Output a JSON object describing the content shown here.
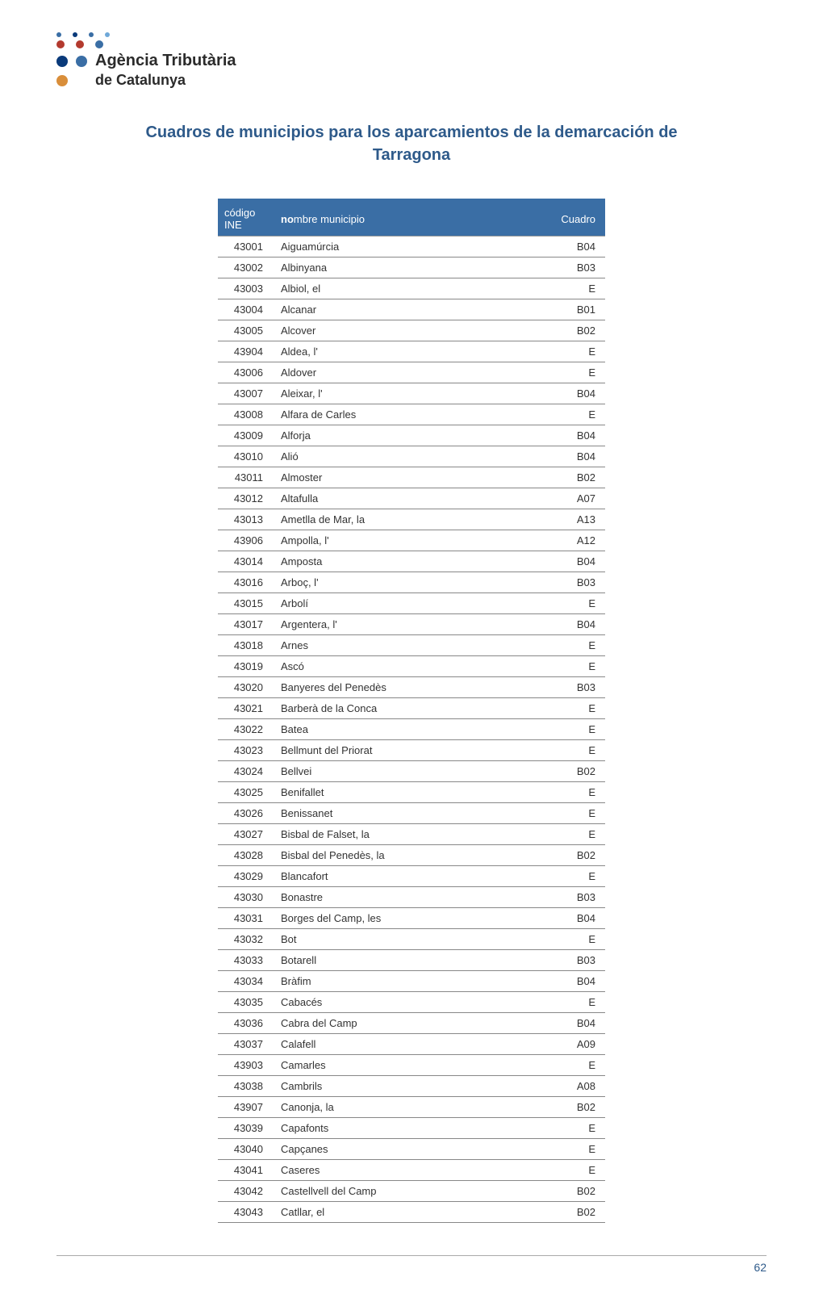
{
  "logo": {
    "line1": "Agència Tributària",
    "line2": "de Catalunya",
    "dots": {
      "row1": [
        "#3a6ea5",
        "#0a3a7a",
        "#3a6ea5",
        "#6fa8d8"
      ],
      "row2": [
        "#b33a2e",
        "#b33a2e",
        "#3a6ea5"
      ],
      "row3_left": [
        "#0a3a7a",
        "#3a6ea5"
      ],
      "row4_dot": "#d98e3a"
    }
  },
  "title": "Cuadros de municipios para los aparcamientos de la demarcación de Tarragona",
  "headers": {
    "ine": "código INE",
    "nombre": "nombre municipio",
    "cuadro": "Cuadro"
  },
  "rows": [
    {
      "ine": "43001",
      "nombre": "Aiguamúrcia",
      "cuadro": "B04"
    },
    {
      "ine": "43002",
      "nombre": "Albinyana",
      "cuadro": "B03"
    },
    {
      "ine": "43003",
      "nombre": "Albiol, el",
      "cuadro": "E"
    },
    {
      "ine": "43004",
      "nombre": "Alcanar",
      "cuadro": "B01"
    },
    {
      "ine": "43005",
      "nombre": "Alcover",
      "cuadro": "B02"
    },
    {
      "ine": "43904",
      "nombre": "Aldea, l'",
      "cuadro": "E"
    },
    {
      "ine": "43006",
      "nombre": "Aldover",
      "cuadro": "E"
    },
    {
      "ine": "43007",
      "nombre": "Aleixar, l'",
      "cuadro": "B04"
    },
    {
      "ine": "43008",
      "nombre": "Alfara de Carles",
      "cuadro": "E"
    },
    {
      "ine": "43009",
      "nombre": "Alforja",
      "cuadro": "B04"
    },
    {
      "ine": "43010",
      "nombre": "Alió",
      "cuadro": "B04"
    },
    {
      "ine": "43011",
      "nombre": "Almoster",
      "cuadro": "B02"
    },
    {
      "ine": "43012",
      "nombre": "Altafulla",
      "cuadro": "A07"
    },
    {
      "ine": "43013",
      "nombre": "Ametlla de Mar, la",
      "cuadro": "A13"
    },
    {
      "ine": "43906",
      "nombre": "Ampolla, l'",
      "cuadro": "A12"
    },
    {
      "ine": "43014",
      "nombre": "Amposta",
      "cuadro": "B04"
    },
    {
      "ine": "43016",
      "nombre": "Arboç, l'",
      "cuadro": "B03"
    },
    {
      "ine": "43015",
      "nombre": "Arbolí",
      "cuadro": "E"
    },
    {
      "ine": "43017",
      "nombre": "Argentera, l'",
      "cuadro": "B04"
    },
    {
      "ine": "43018",
      "nombre": "Arnes",
      "cuadro": "E"
    },
    {
      "ine": "43019",
      "nombre": "Ascó",
      "cuadro": "E"
    },
    {
      "ine": "43020",
      "nombre": "Banyeres del Penedès",
      "cuadro": "B03"
    },
    {
      "ine": "43021",
      "nombre": "Barberà de la Conca",
      "cuadro": "E"
    },
    {
      "ine": "43022",
      "nombre": "Batea",
      "cuadro": "E"
    },
    {
      "ine": "43023",
      "nombre": "Bellmunt del Priorat",
      "cuadro": "E"
    },
    {
      "ine": "43024",
      "nombre": "Bellvei",
      "cuadro": "B02"
    },
    {
      "ine": "43025",
      "nombre": "Benifallet",
      "cuadro": "E"
    },
    {
      "ine": "43026",
      "nombre": "Benissanet",
      "cuadro": "E"
    },
    {
      "ine": "43027",
      "nombre": "Bisbal de Falset, la",
      "cuadro": "E"
    },
    {
      "ine": "43028",
      "nombre": "Bisbal del Penedès, la",
      "cuadro": "B02"
    },
    {
      "ine": "43029",
      "nombre": "Blancafort",
      "cuadro": "E"
    },
    {
      "ine": "43030",
      "nombre": "Bonastre",
      "cuadro": "B03"
    },
    {
      "ine": "43031",
      "nombre": "Borges del Camp, les",
      "cuadro": "B04"
    },
    {
      "ine": "43032",
      "nombre": "Bot",
      "cuadro": "E"
    },
    {
      "ine": "43033",
      "nombre": "Botarell",
      "cuadro": "B03"
    },
    {
      "ine": "43034",
      "nombre": "Bràfim",
      "cuadro": "B04"
    },
    {
      "ine": "43035",
      "nombre": "Cabacés",
      "cuadro": "E"
    },
    {
      "ine": "43036",
      "nombre": "Cabra del Camp",
      "cuadro": "B04"
    },
    {
      "ine": "43037",
      "nombre": "Calafell",
      "cuadro": "A09"
    },
    {
      "ine": "43903",
      "nombre": "Camarles",
      "cuadro": "E"
    },
    {
      "ine": "43038",
      "nombre": "Cambrils",
      "cuadro": "A08"
    },
    {
      "ine": "43907",
      "nombre": "Canonja, la",
      "cuadro": "B02"
    },
    {
      "ine": "43039",
      "nombre": "Capafonts",
      "cuadro": "E"
    },
    {
      "ine": "43040",
      "nombre": "Capçanes",
      "cuadro": "E"
    },
    {
      "ine": "43041",
      "nombre": "Caseres",
      "cuadro": "E"
    },
    {
      "ine": "43042",
      "nombre": "Castellvell del Camp",
      "cuadro": "B02"
    },
    {
      "ine": "43043",
      "nombre": "Catllar, el",
      "cuadro": "B02"
    }
  ],
  "footer": {
    "page": "62"
  }
}
